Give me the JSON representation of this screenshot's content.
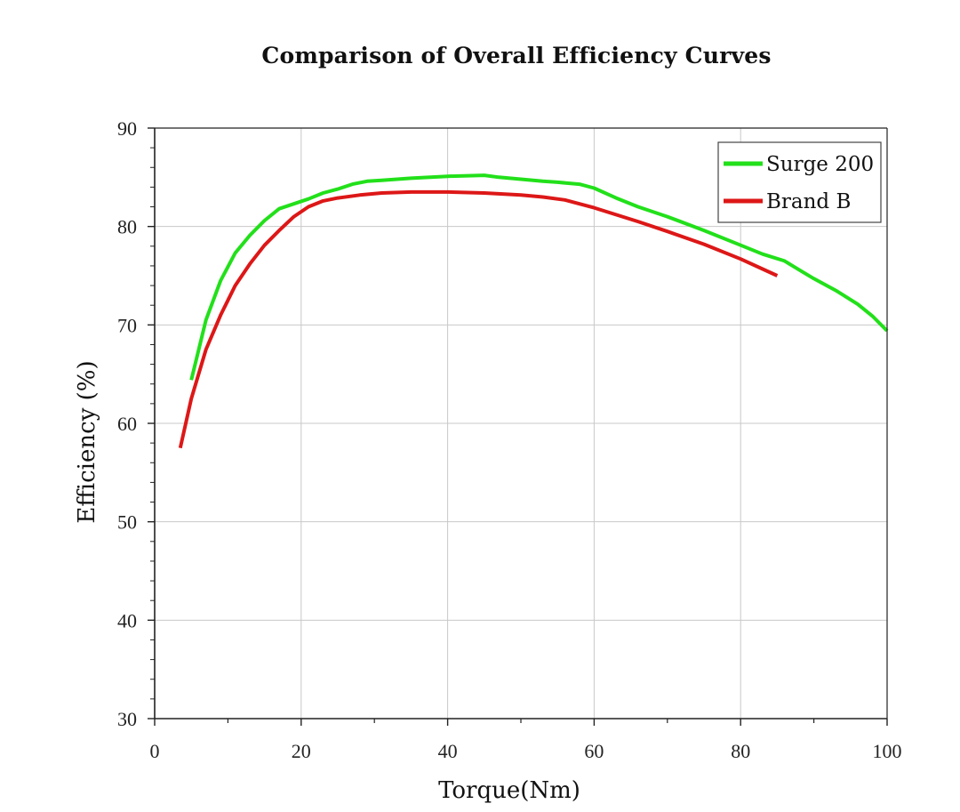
{
  "chart_data": {
    "type": "line",
    "title": "Comparison of Overall Efficiency Curves",
    "xlabel": "Torque(Nm)",
    "ylabel": "Efficiency (%)",
    "xlim": [
      0,
      100
    ],
    "ylim": [
      30,
      90
    ],
    "xticks": [
      0,
      20,
      40,
      60,
      80,
      100
    ],
    "yticks": [
      30,
      40,
      50,
      60,
      70,
      80,
      90
    ],
    "grid": true,
    "legend_position": "top-right",
    "series": [
      {
        "name": "Surge 200",
        "color": "#22e01a",
        "x": [
          5,
          7,
          9,
          11,
          13,
          15,
          17,
          19,
          21,
          23,
          25,
          27,
          29,
          31,
          35,
          40,
          45,
          47,
          50,
          53,
          55,
          58,
          60,
          63,
          66,
          70,
          75,
          80,
          83,
          86,
          88,
          90,
          93,
          96,
          98,
          100
        ],
        "y": [
          64.4,
          70.5,
          74.5,
          77.3,
          79.1,
          80.6,
          81.8,
          82.3,
          82.8,
          83.4,
          83.8,
          84.3,
          84.6,
          84.7,
          84.9,
          85.1,
          85.2,
          85.0,
          84.8,
          84.6,
          84.5,
          84.3,
          83.9,
          82.9,
          82.0,
          81.0,
          79.6,
          78.1,
          77.2,
          76.5,
          75.6,
          74.7,
          73.5,
          72.1,
          70.9,
          69.4
        ]
      },
      {
        "name": "Brand B",
        "color": "#dd1717",
        "x": [
          3.5,
          5,
          7,
          9,
          11,
          13,
          15,
          17,
          19,
          21,
          23,
          25,
          28,
          31,
          35,
          40,
          45,
          50,
          53,
          56,
          58,
          60,
          63,
          66,
          70,
          75,
          80,
          85
        ],
        "y": [
          57.5,
          62.5,
          67.5,
          71.0,
          74.0,
          76.2,
          78.1,
          79.6,
          81.0,
          82.0,
          82.6,
          82.9,
          83.2,
          83.4,
          83.5,
          83.5,
          83.4,
          83.2,
          83.0,
          82.7,
          82.3,
          81.9,
          81.2,
          80.5,
          79.5,
          78.2,
          76.7,
          75.0
        ]
      }
    ]
  }
}
